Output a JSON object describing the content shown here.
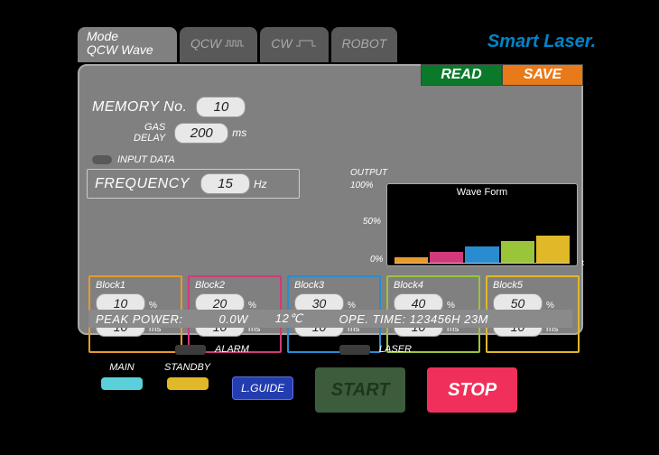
{
  "brand": "Smart Laser",
  "tabs": {
    "active": {
      "line1": "Mode",
      "line2": "QCW Wave"
    },
    "t1": "QCW",
    "t2": "CW",
    "t3": "ROBOT"
  },
  "buttons": {
    "read": "READ",
    "save": "SAVE"
  },
  "memory": {
    "label": "MEMORY No.",
    "value": "10"
  },
  "gas": {
    "label": "GAS\nDELAY",
    "value": "200",
    "unit": "ms"
  },
  "input_data": {
    "label": "INPUT DATA"
  },
  "frequency": {
    "label": "FREQUENCY",
    "value": "15",
    "unit": "Hz"
  },
  "chart": {
    "output_label": "OUTPUT",
    "title": "Wave Form",
    "ylabels": [
      "100%",
      "50%",
      "0%"
    ],
    "type": "bar",
    "ylim": [
      0,
      100
    ],
    "values": [
      10,
      20,
      30,
      40,
      50
    ],
    "colors": [
      "#e89a2a",
      "#d03a7a",
      "#2a8cd0",
      "#9ac43a",
      "#e0b828"
    ],
    "background": "#000000",
    "axis_color": "#cccccc"
  },
  "blocks": [
    {
      "title": "Block1",
      "pct": "10",
      "ms": "10",
      "border": "#e89a2a"
    },
    {
      "title": "Block2",
      "pct": "20",
      "ms": "10",
      "border": "#d03a7a"
    },
    {
      "title": "Block3",
      "pct": "30",
      "ms": "10",
      "border": "#2a8cd0"
    },
    {
      "title": "Block4",
      "pct": "40",
      "ms": "10",
      "border": "#9ac43a"
    },
    {
      "title": "Block5",
      "pct": "50",
      "ms": "10",
      "border": "#e0b828"
    }
  ],
  "block_units": {
    "pct": "%",
    "ms": "ms"
  },
  "status": {
    "peak_label": "PEAK POWER:",
    "peak_value": "0.0W",
    "temp": "12℃",
    "ope_label": "OPE. TIME:",
    "ope_value": "123456H 23M"
  },
  "indicators": {
    "alarm": "ALARM",
    "laser": "LASER"
  },
  "bottom": {
    "main": {
      "label": "MAIN",
      "color": "#5ad0db"
    },
    "standby": {
      "label": "STANDBY",
      "color": "#e0b828"
    },
    "lguide": "L.GUIDE",
    "start": {
      "label": "START",
      "bg": "#3c5c3c",
      "fg": "#1c381c"
    },
    "stop": {
      "label": "STOP",
      "bg": "#f0305a",
      "fg": "#ffffff"
    }
  }
}
